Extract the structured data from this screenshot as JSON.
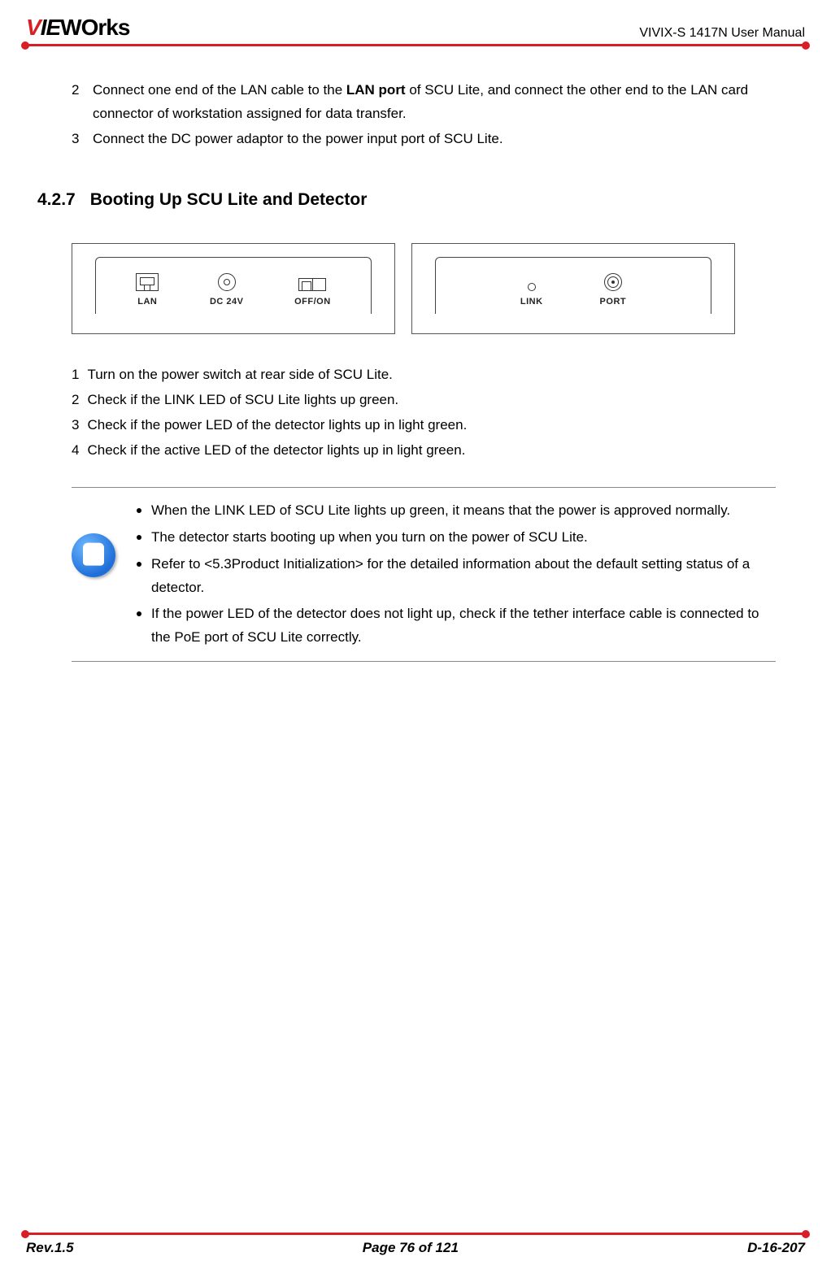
{
  "header": {
    "logo_html_parts": {
      "v": "V",
      "ie": "IE",
      "works": "WOrks"
    },
    "doc_title": "VIVIX-S 1417N User Manual"
  },
  "colors": {
    "rule": "#d81f26",
    "text": "#000000",
    "icon_gradient_light": "#6fb7ff",
    "icon_gradient_dark": "#1e6fd9",
    "panel_border": "#555555",
    "note_border": "#888888"
  },
  "intro_steps": [
    {
      "n": "2",
      "text_pre": "Connect one end of the LAN cable to the ",
      "bold": "LAN port",
      "text_post": " of SCU Lite, and connect the other end to the LAN card connector of workstation assigned for data transfer."
    },
    {
      "n": "3",
      "text_pre": "Connect the DC power adaptor to the power input port of SCU Lite.",
      "bold": "",
      "text_post": ""
    }
  ],
  "section": {
    "number": "4.2.7",
    "title": "Booting Up SCU Lite and Detector"
  },
  "diagram": {
    "left_panel_ports": [
      {
        "icon": "lan",
        "label": "LAN"
      },
      {
        "icon": "dc",
        "label": "DC 24V"
      },
      {
        "icon": "switch",
        "label": "OFF/ON"
      }
    ],
    "right_panel_ports": [
      {
        "icon": "led",
        "label": "LINK"
      },
      {
        "icon": "conn",
        "label": "PORT"
      }
    ]
  },
  "boot_steps": [
    {
      "n": "1",
      "text": "Turn on the power switch at rear side of SCU Lite."
    },
    {
      "n": "2",
      "text": "Check if the LINK LED of SCU Lite lights up green."
    },
    {
      "n": "3",
      "text": "Check if the power LED of the detector lights up in light green."
    },
    {
      "n": "4",
      "text": "Check if the active LED of the detector lights up in light green."
    }
  ],
  "notes": [
    "When the LINK LED of SCU Lite lights up green, it means that the power is approved normally.",
    "The detector starts booting up when you turn on the power of SCU Lite.",
    "Refer to <5.3Product Initialization> for the detailed information about the default setting status of a detector.",
    "If the power LED of the detector does not light up, check if the tether interface cable is connected to the PoE port of SCU Lite correctly."
  ],
  "footer": {
    "rev": "Rev.1.5",
    "page": "Page 76 of 121",
    "doc": "D-16-207"
  }
}
